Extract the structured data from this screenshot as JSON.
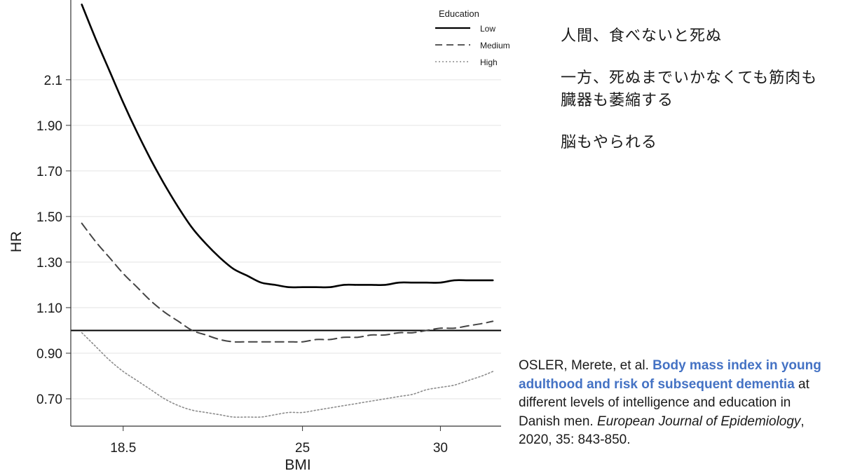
{
  "notes": [
    "人間、食べないと死ぬ",
    "一方、死ぬまでいかなくても筋肉も臓器も萎縮する",
    "脳もやられる"
  ],
  "citation": {
    "authors": "OSLER, Merete, et al.",
    "title": "Body mass index in young adulthood and risk of subsequent dementia",
    "rest": "at different levels of intelligence and education in Danish men.",
    "journal": "European Journal of Epidemiology",
    "details": ", 2020, 35: 843-850."
  },
  "colors": {
    "link_title": "#4472c4",
    "grid": "#ebebeb",
    "low": "#000000",
    "medium": "#444444",
    "high": "#8c8c8c"
  },
  "chart_data": {
    "type": "line",
    "xlabel": "BMI",
    "ylabel": "HR",
    "x_ticks": [
      18.5,
      25,
      30
    ],
    "x_tick_labels": [
      "18.5",
      "25",
      "30"
    ],
    "y_ticks": [
      0.7,
      0.9,
      1.1,
      1.3,
      1.5,
      1.7,
      1.9,
      2.1
    ],
    "y_tick_labels": [
      "0.70",
      "0.90",
      "1.10",
      "1.30",
      "1.50",
      "1.70",
      "1.90",
      "2.1"
    ],
    "xlim": [
      16.6,
      32.2
    ],
    "ylim": [
      0.58,
      2.45
    ],
    "grid": true,
    "reference_line": 1.0,
    "legend": {
      "title": "Education",
      "placement": "top-right",
      "entries": [
        "Low",
        "Medium",
        "High"
      ]
    },
    "series": [
      {
        "name": "Low",
        "style": "solid",
        "x": [
          17.0,
          17.5,
          18.0,
          18.5,
          19.0,
          19.5,
          20.0,
          20.5,
          21.0,
          21.5,
          22.0,
          22.5,
          23.0,
          23.5,
          24.0,
          24.5,
          25.0,
          25.5,
          26.0,
          26.5,
          27.0,
          27.5,
          28.0,
          28.5,
          29.0,
          29.5,
          30.0,
          30.5,
          31.0,
          31.5,
          31.9
        ],
        "y": [
          2.43,
          2.28,
          2.14,
          2.0,
          1.87,
          1.75,
          1.64,
          1.54,
          1.45,
          1.38,
          1.32,
          1.27,
          1.24,
          1.21,
          1.2,
          1.19,
          1.19,
          1.19,
          1.19,
          1.2,
          1.2,
          1.2,
          1.2,
          1.21,
          1.21,
          1.21,
          1.21,
          1.22,
          1.22,
          1.22,
          1.22
        ]
      },
      {
        "name": "Medium",
        "style": "dashed",
        "x": [
          17.0,
          17.5,
          18.0,
          18.5,
          19.0,
          19.5,
          20.0,
          20.5,
          21.0,
          21.5,
          22.0,
          22.5,
          23.0,
          23.5,
          24.0,
          24.5,
          25.0,
          25.5,
          26.0,
          26.5,
          27.0,
          27.5,
          28.0,
          28.5,
          29.0,
          29.5,
          30.0,
          30.5,
          31.0,
          31.5,
          31.9
        ],
        "y": [
          1.47,
          1.39,
          1.32,
          1.25,
          1.19,
          1.13,
          1.08,
          1.04,
          1.0,
          0.98,
          0.96,
          0.95,
          0.95,
          0.95,
          0.95,
          0.95,
          0.95,
          0.96,
          0.96,
          0.97,
          0.97,
          0.98,
          0.98,
          0.99,
          0.99,
          1.0,
          1.01,
          1.01,
          1.02,
          1.03,
          1.04
        ]
      },
      {
        "name": "High",
        "style": "dotted",
        "x": [
          17.0,
          17.5,
          18.0,
          18.5,
          19.0,
          19.5,
          20.0,
          20.5,
          21.0,
          21.5,
          22.0,
          22.5,
          23.0,
          23.5,
          24.0,
          24.5,
          25.0,
          25.5,
          26.0,
          26.5,
          27.0,
          27.5,
          28.0,
          28.5,
          29.0,
          29.5,
          30.0,
          30.5,
          31.0,
          31.5,
          31.9
        ],
        "y": [
          0.99,
          0.93,
          0.87,
          0.82,
          0.78,
          0.74,
          0.7,
          0.67,
          0.65,
          0.64,
          0.63,
          0.62,
          0.62,
          0.62,
          0.63,
          0.64,
          0.64,
          0.65,
          0.66,
          0.67,
          0.68,
          0.69,
          0.7,
          0.71,
          0.72,
          0.74,
          0.75,
          0.76,
          0.78,
          0.8,
          0.82
        ]
      }
    ]
  }
}
